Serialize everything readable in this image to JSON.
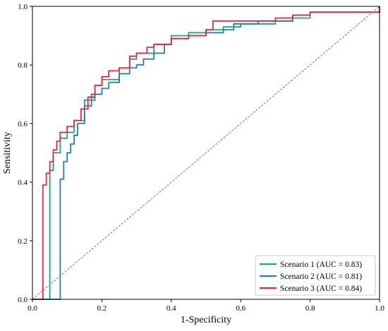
{
  "chart_data": {
    "type": "line",
    "xlabel": "1-Specificity",
    "ylabel": "Sensitivity",
    "xlim": [
      0.0,
      1.0
    ],
    "ylim": [
      0.0,
      1.0
    ],
    "xticks": [
      "0.0",
      "0.2",
      "0.4",
      "0.6",
      "0.8",
      "1.0"
    ],
    "yticks": [
      "0.0",
      "0.2",
      "0.4",
      "0.6",
      "0.8",
      "1.0"
    ],
    "grid": false,
    "legend_position": "bottom-right",
    "reference_line": {
      "style": "dashed",
      "color": "#555555",
      "x": [
        0,
        1
      ],
      "y": [
        0,
        1
      ]
    },
    "series": [
      {
        "name": "Scenario 1 (AUC = 0.83)",
        "color": "#1aa97a",
        "x": [
          0,
          0.05,
          0.06,
          0.08,
          0.1,
          0.12,
          0.15,
          0.18,
          0.2,
          0.25,
          0.28,
          0.3,
          0.35,
          0.4,
          0.45,
          0.5,
          0.55,
          0.6,
          0.7,
          0.75,
          0.8,
          0.9,
          0.95,
          1.0
        ],
        "y": [
          0,
          0.44,
          0.5,
          0.55,
          0.57,
          0.61,
          0.68,
          0.73,
          0.75,
          0.79,
          0.82,
          0.84,
          0.87,
          0.9,
          0.91,
          0.92,
          0.93,
          0.94,
          0.95,
          0.96,
          0.98,
          0.98,
          0.98,
          1.0
        ]
      },
      {
        "name": "Scenario 2 (AUC = 0.81)",
        "color": "#2a7bb0",
        "x": [
          0,
          0.08,
          0.09,
          0.1,
          0.11,
          0.12,
          0.13,
          0.15,
          0.17,
          0.2,
          0.22,
          0.25,
          0.28,
          0.3,
          0.32,
          0.35,
          0.38,
          0.4,
          0.45,
          0.5,
          0.55,
          0.58,
          0.65,
          0.75,
          0.8,
          0.9,
          0.95,
          1.0
        ],
        "y": [
          0,
          0.41,
          0.47,
          0.5,
          0.53,
          0.56,
          0.6,
          0.66,
          0.7,
          0.72,
          0.74,
          0.77,
          0.79,
          0.8,
          0.82,
          0.84,
          0.87,
          0.89,
          0.9,
          0.91,
          0.92,
          0.94,
          0.95,
          0.97,
          0.98,
          0.98,
          0.98,
          1.0
        ]
      },
      {
        "name": "Scenario 3 (AUC = 0.84)",
        "color": "#e5263c",
        "x": [
          0,
          0.03,
          0.04,
          0.05,
          0.06,
          0.07,
          0.08,
          0.1,
          0.12,
          0.14,
          0.16,
          0.18,
          0.2,
          0.22,
          0.25,
          0.28,
          0.3,
          0.33,
          0.35,
          0.4,
          0.45,
          0.5,
          0.52,
          0.6,
          0.7,
          0.75,
          0.8,
          0.9,
          0.95,
          1.0
        ],
        "y": [
          0,
          0.39,
          0.43,
          0.47,
          0.51,
          0.54,
          0.57,
          0.59,
          0.61,
          0.65,
          0.69,
          0.73,
          0.76,
          0.78,
          0.79,
          0.83,
          0.84,
          0.86,
          0.87,
          0.89,
          0.9,
          0.92,
          0.95,
          0.95,
          0.96,
          0.97,
          0.98,
          0.98,
          0.98,
          1.0
        ]
      }
    ]
  }
}
